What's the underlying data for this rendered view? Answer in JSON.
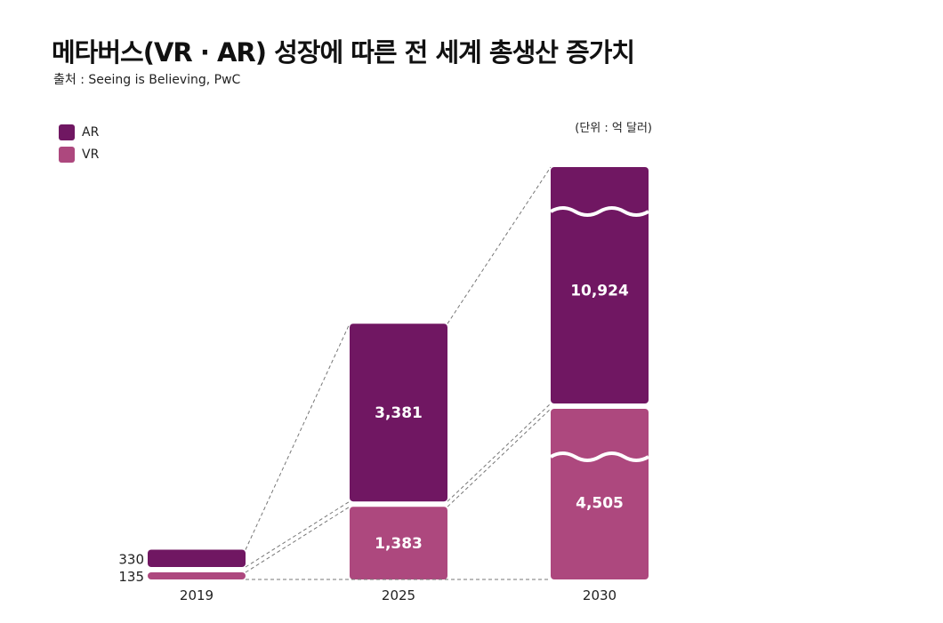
{
  "title": "메타버스(VR · AR) 성장에 따른 전 세계 총생산 증가치",
  "source": "출처 : Seeing is Believing, PwC",
  "unit": "(단위 : 억 달러)",
  "chart_data": {
    "type": "bar",
    "stacked": true,
    "categories": [
      "2019",
      "2025",
      "2030"
    ],
    "series": [
      {
        "name": "VR",
        "values": [
          135,
          1383,
          4505
        ],
        "color": "#ad487e"
      },
      {
        "name": "AR",
        "values": [
          330,
          3381,
          10924
        ],
        "color": "#701762"
      }
    ],
    "value_labels": {
      "VR": [
        "135",
        "1,383",
        "4,505"
      ],
      "AR": [
        "330",
        "3,381",
        "10,924"
      ]
    },
    "broken_bars": [
      "2030"
    ],
    "grid": false,
    "legend_position": "top-left"
  }
}
